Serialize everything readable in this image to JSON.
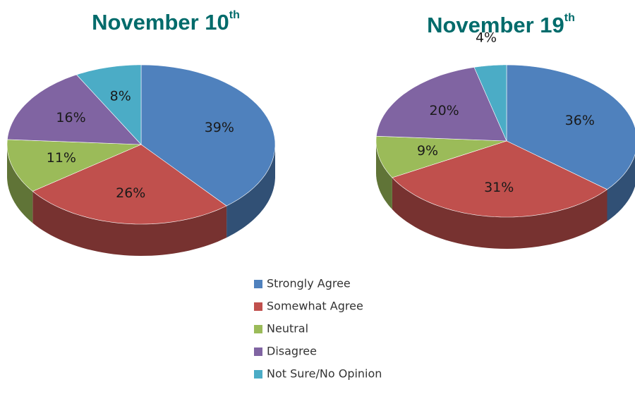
{
  "chart_data": [
    {
      "type": "pie",
      "title": [
        "November 10",
        "th"
      ],
      "categories": [
        "Strongly Agree",
        "Somewhat Agree",
        "Neutral",
        "Disagree",
        "Not Sure/No Opinion"
      ],
      "colors": [
        "#4f81bd",
        "#c0504d",
        "#9bbb59",
        "#8064a2",
        "#4bacc6"
      ],
      "values": [
        39,
        26,
        11,
        16,
        8
      ],
      "value_labels": [
        "39%",
        "26%",
        "11%",
        "16%",
        "8%"
      ]
    },
    {
      "type": "pie",
      "title": [
        "November 19",
        "th"
      ],
      "values": [
        36,
        31,
        9,
        20,
        4
      ],
      "value_labels": [
        "36%",
        "31%",
        "9%",
        "20%",
        "4%"
      ]
    }
  ]
}
